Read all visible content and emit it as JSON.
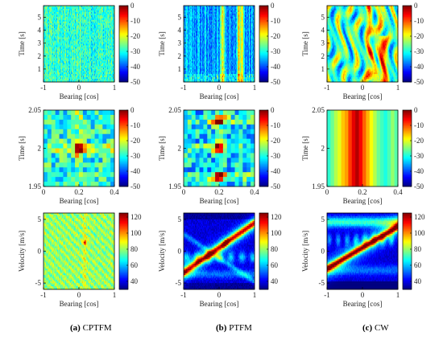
{
  "figure": {
    "captions": [
      {
        "label": "(a)",
        "text": "CPTFM"
      },
      {
        "label": "(b)",
        "text": "PTFM"
      },
      {
        "label": "(c)",
        "text": "CW"
      }
    ]
  },
  "chart_data": [
    {
      "id": "a1",
      "type": "heatmap",
      "pattern": "noise",
      "xlabel": "Bearing [cos]",
      "ylabel": "Time [s]",
      "xlim": [
        -1,
        1
      ],
      "ylim": [
        0,
        5.9
      ],
      "xticks": [
        "-1",
        "0",
        "1"
      ],
      "yticks": [
        "1",
        "2",
        "3",
        "4",
        "5"
      ],
      "colorbar": {
        "min": -50,
        "max": 0,
        "ticks": [
          "0",
          "-10",
          "-20",
          "-30",
          "-40",
          "-50"
        ]
      }
    },
    {
      "id": "b1",
      "type": "heatmap",
      "pattern": "stripes",
      "xlabel": "Bearing [cos]",
      "ylabel": "Time [s]",
      "xlim": [
        -1,
        1
      ],
      "ylim": [
        0,
        5.9
      ],
      "xticks": [
        "-1",
        "0",
        "1"
      ],
      "yticks": [
        "1",
        "2",
        "3",
        "4",
        "5"
      ],
      "colorbar": {
        "min": -50,
        "max": 0,
        "ticks": [
          "0",
          "-10",
          "-20",
          "-30",
          "-40",
          "-50"
        ]
      }
    },
    {
      "id": "c1",
      "type": "heatmap",
      "pattern": "cw",
      "xlabel": "Bearing [cos]",
      "ylabel": "Time [s]",
      "xlim": [
        -1,
        1
      ],
      "ylim": [
        0,
        5.9
      ],
      "xticks": [
        "-1",
        "0",
        "1"
      ],
      "yticks": [
        "1",
        "2",
        "3",
        "4",
        "5"
      ],
      "colorbar": {
        "min": -50,
        "max": 0,
        "ticks": [
          "0",
          "-10",
          "-20",
          "-30",
          "-40",
          "-50"
        ]
      }
    },
    {
      "id": "a2",
      "type": "heatmap",
      "pattern": "spot",
      "xlabel": "Bearing [cos]",
      "ylabel": "Time [s]",
      "xlim": [
        0,
        0.4
      ],
      "ylim": [
        1.95,
        2.05
      ],
      "xticks": [
        "0",
        "0.2",
        "0.4"
      ],
      "yticks": [
        "1.95",
        "2",
        "2.05"
      ],
      "colorbar": {
        "min": -50,
        "max": 0,
        "ticks": [
          "0",
          "-10",
          "-20",
          "-30",
          "-40",
          "-50"
        ]
      }
    },
    {
      "id": "b2",
      "type": "heatmap",
      "pattern": "spots3",
      "xlabel": "Bearing [cos]",
      "ylabel": "Time [s]",
      "xlim": [
        0,
        0.4
      ],
      "ylim": [
        1.95,
        2.05
      ],
      "xticks": [
        "0",
        "0.2",
        "0.4"
      ],
      "yticks": [
        "1.95",
        "2",
        "2.05"
      ],
      "colorbar": {
        "min": -50,
        "max": 0,
        "ticks": [
          "0",
          "-10",
          "-20",
          "-30",
          "-40",
          "-50"
        ]
      }
    },
    {
      "id": "c2",
      "type": "heatmap",
      "pattern": "vstripes",
      "xlabel": "Bearing [cos]",
      "ylabel": "Time [s]",
      "xlim": [
        0,
        0.4
      ],
      "ylim": [
        1.95,
        2.05
      ],
      "xticks": [
        "0",
        "0.2",
        "0.4"
      ],
      "yticks": [
        "1.95",
        "2",
        "2.05"
      ],
      "colorbar": {
        "min": -50,
        "max": 0,
        "ticks": [
          "0",
          "-10",
          "-20",
          "-30",
          "-40",
          "-50"
        ]
      }
    },
    {
      "id": "a3",
      "type": "heatmap",
      "pattern": "velnoise",
      "xlabel": "Bearing [cos]",
      "ylabel": "Velocity [m/s]",
      "xlim": [
        -1,
        1
      ],
      "ylim": [
        -6,
        6
      ],
      "xticks": [
        "-1",
        "0",
        "1"
      ],
      "yticks": [
        "-5",
        "0",
        "5"
      ],
      "colorbar": {
        "min": 30,
        "max": 125,
        "ticks": [
          "120",
          "100",
          "80",
          "60",
          "40"
        ]
      }
    },
    {
      "id": "b3",
      "type": "heatmap",
      "pattern": "diag",
      "xlabel": "Bearing [cos]",
      "ylabel": "Velocity [m/s]",
      "xlim": [
        -1,
        1
      ],
      "ylim": [
        -6,
        6
      ],
      "xticks": [
        "-1",
        "0",
        "1"
      ],
      "yticks": [
        "-5",
        "0",
        "5"
      ],
      "colorbar": {
        "min": 30,
        "max": 125,
        "ticks": [
          "120",
          "100",
          "80",
          "60",
          "40"
        ]
      }
    },
    {
      "id": "c3",
      "type": "heatmap",
      "pattern": "diag2",
      "xlabel": "Bearing [cos]",
      "ylabel": "Velocity [m/s]",
      "xlim": [
        -1,
        1
      ],
      "ylim": [
        -6,
        6
      ],
      "xticks": [
        "-1",
        "0",
        "1"
      ],
      "yticks": [
        "-5",
        "0",
        "5"
      ],
      "colorbar": {
        "min": 30,
        "max": 125,
        "ticks": [
          "120",
          "100",
          "80",
          "60",
          "40"
        ]
      }
    }
  ]
}
